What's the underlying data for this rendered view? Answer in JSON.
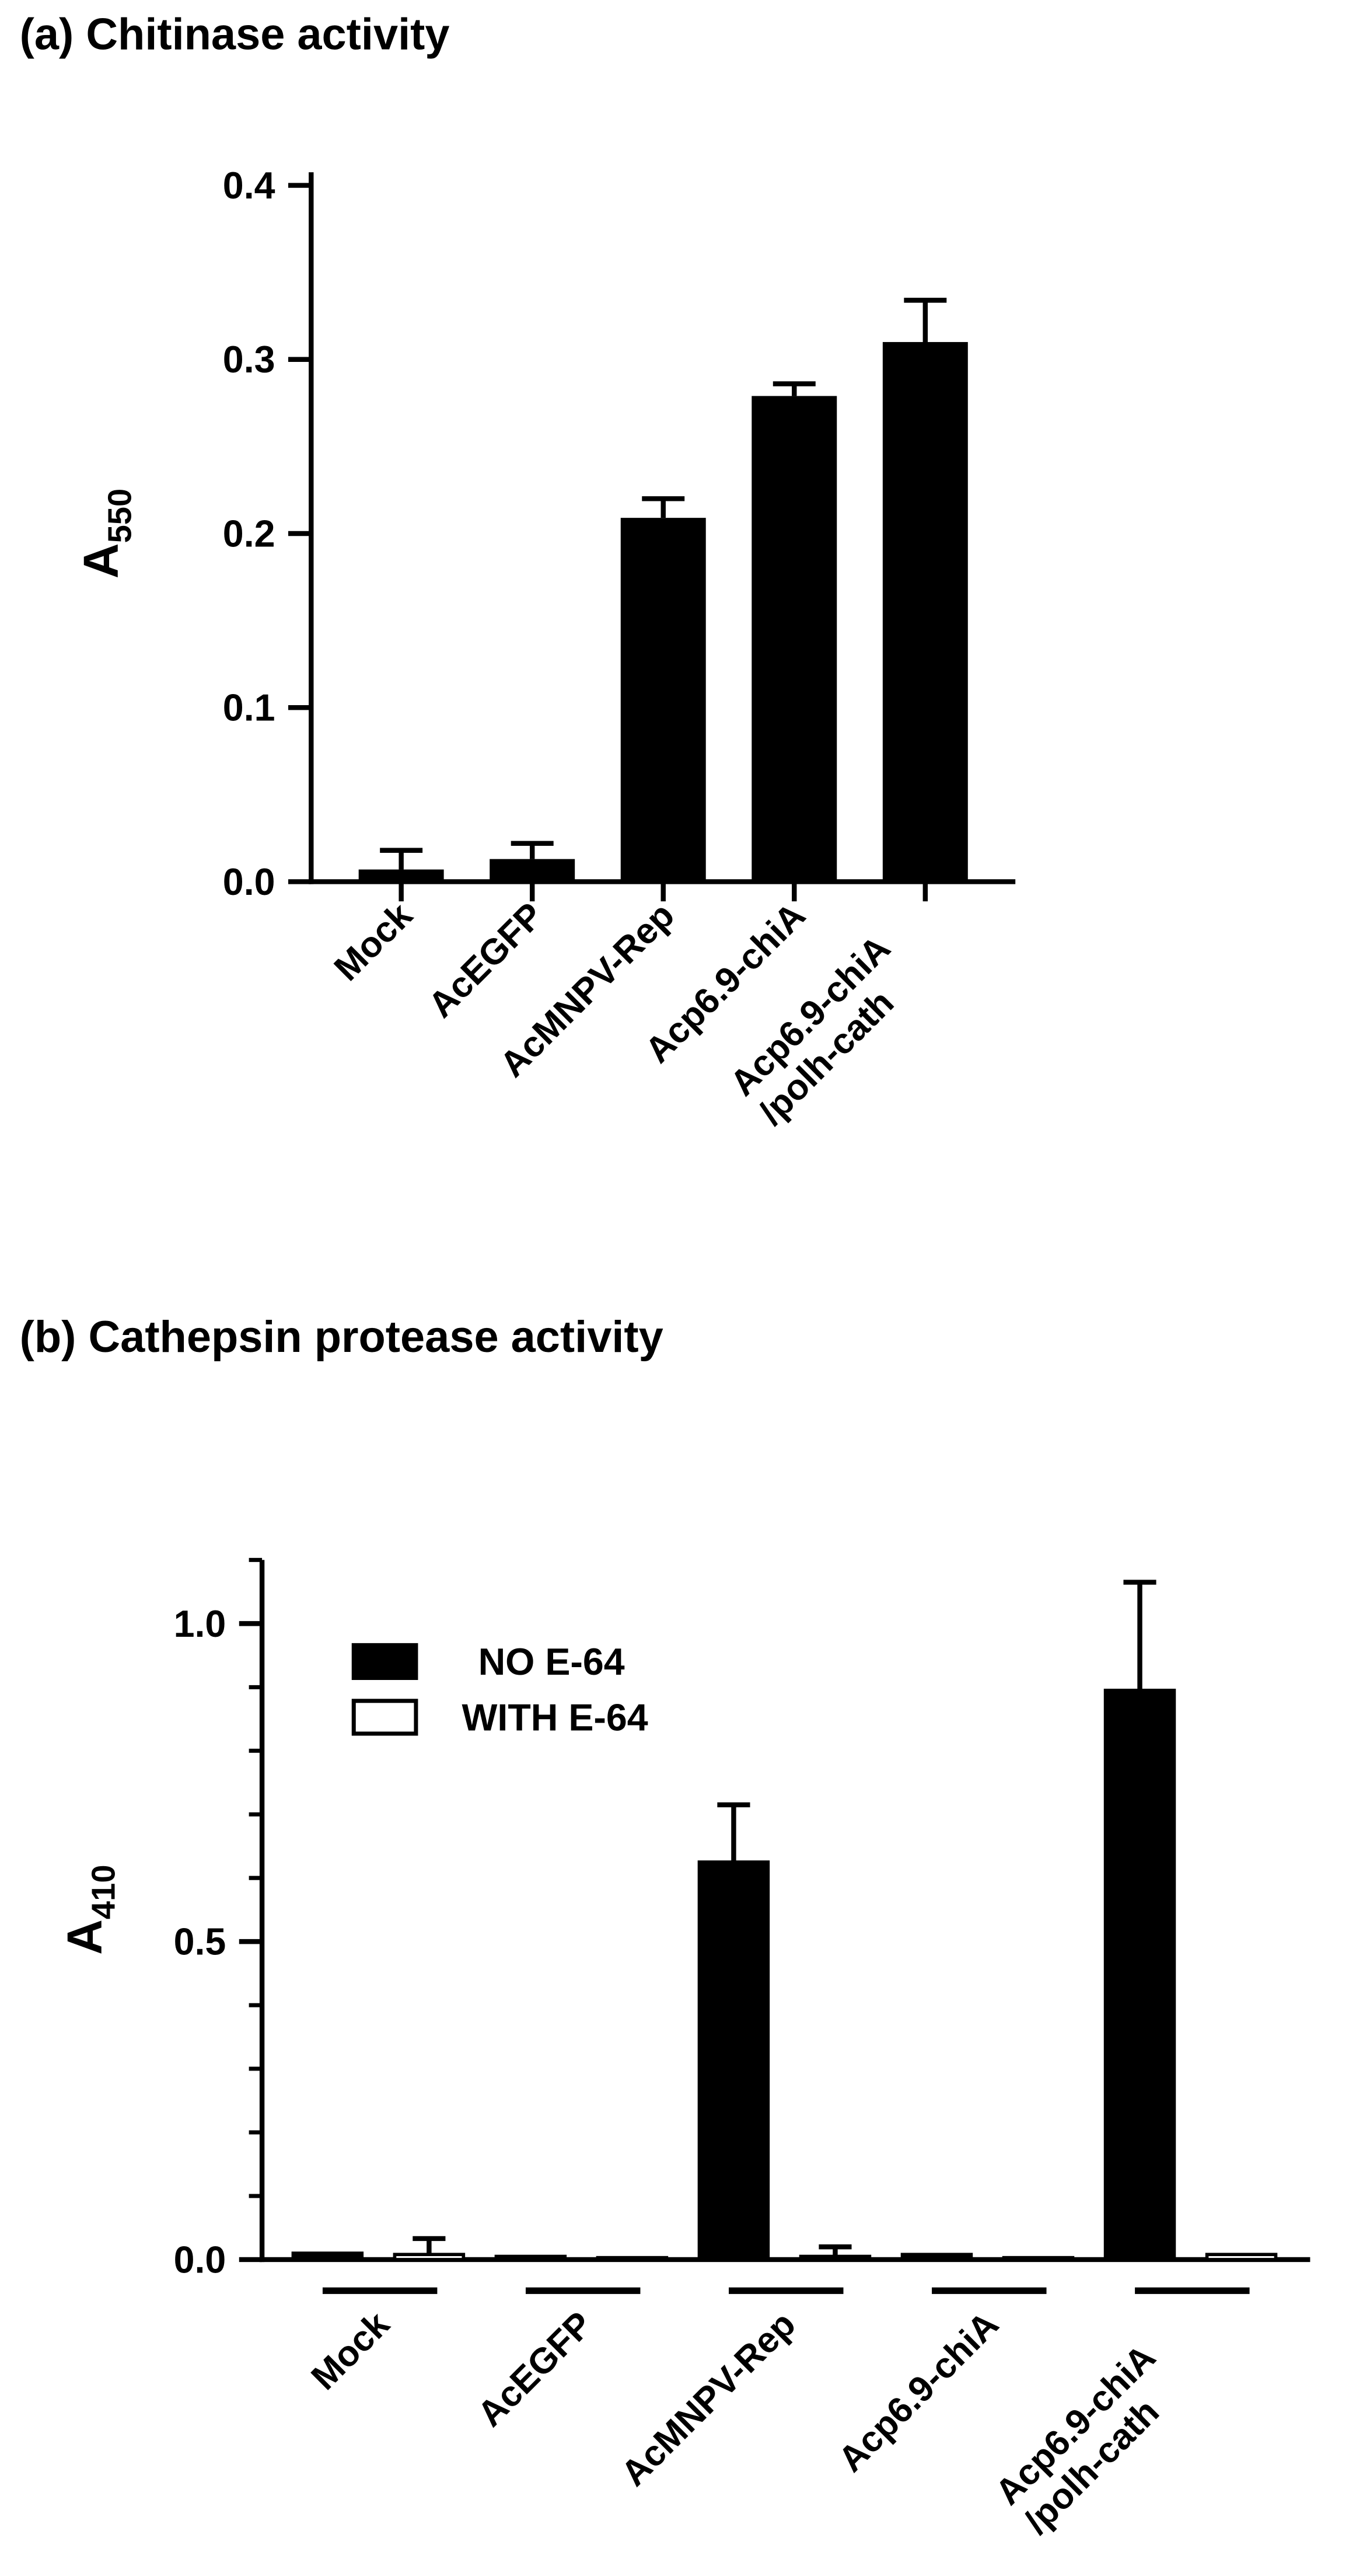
{
  "chart_data": [
    {
      "type": "bar",
      "title": "(a) Chitinase activity",
      "y_label": "A",
      "y_label_subscript": "550",
      "categories": [
        "Mock",
        "AcEGFP",
        "AcMNPV-Rep",
        "Acp6.9-chiA",
        "Acp6.9-chiA\n/polh-cath"
      ],
      "values": [
        0.007,
        0.013,
        0.209,
        0.279,
        0.31
      ],
      "errors": [
        0.011,
        0.009,
        0.011,
        0.007,
        0.024
      ],
      "color": "#000000",
      "ylim": [
        0,
        0.4
      ],
      "yticks": [
        {
          "value": 0,
          "label": "0.0"
        },
        0.1,
        0.2,
        0.3,
        0.4
      ]
    },
    {
      "type": "grouped_bar",
      "title": "(b) Cathepsin protease activity",
      "y_label": "A",
      "y_label_subscript": "410",
      "categories": [
        "Mock",
        "AcEGFP",
        "AcMNPV-Rep",
        "Acp6.9-chiA",
        "Acp6.9-chiA\n/polh-cath"
      ],
      "series": [
        {
          "name": "NO E-64",
          "color": "#000000",
          "values": [
            0.01,
            0.005,
            0.625,
            0.008,
            0.895
          ],
          "errors": [
            0,
            0,
            0.09,
            0,
            0.17
          ]
        },
        {
          "name": "WITH E-64",
          "color": "#ffffff",
          "values": [
            0.008,
            0.003,
            0.005,
            0.003,
            0.008
          ],
          "errors": [
            0.025,
            0,
            0.015,
            0,
            0
          ]
        }
      ],
      "ylim": [
        0,
        1.1
      ],
      "yticks": [
        {
          "value": 0,
          "label": "0.0"
        },
        0.5,
        {
          "value": 1,
          "label": "1.0"
        }
      ],
      "yminorticks": [
        0.1,
        0.2,
        0.3,
        0.4,
        0.6,
        0.7,
        0.8,
        0.9,
        1.1
      ],
      "legend": "top-left"
    }
  ]
}
